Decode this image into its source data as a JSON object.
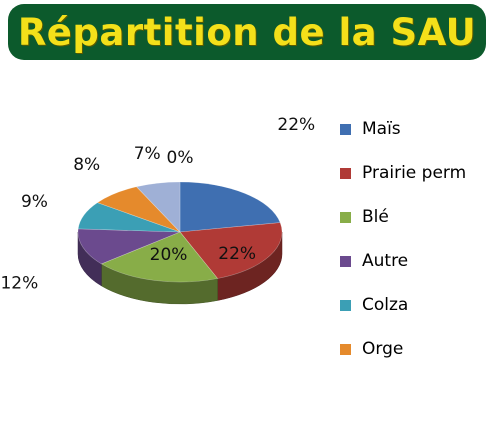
{
  "title": "Répartition de la SAU",
  "chart_data": {
    "type": "pie",
    "title": "Répartition de la SAU",
    "legend_position": "right",
    "categories": [
      "Maïs",
      "Prairie perm",
      "Blé",
      "Autre",
      "Colza",
      "Orge",
      ""
    ],
    "values": [
      22,
      22,
      20,
      12,
      9,
      8,
      7
    ],
    "labels": [
      "22%",
      "22%",
      "20%",
      "12%",
      "9%",
      "8%",
      "7%"
    ],
    "extra_labels": [
      "0%"
    ],
    "colors": [
      "#3f6fb1",
      "#b03a36",
      "#88ad48",
      "#6b4a8e",
      "#3b9fb5",
      "#e58a2c",
      "#9fb0d6"
    ],
    "legend": [
      {
        "label": "Maïs",
        "color": "#3f6fb1"
      },
      {
        "label": "Prairie perm",
        "color": "#b03a36"
      },
      {
        "label": "Blé",
        "color": "#88ad48"
      },
      {
        "label": "Autre",
        "color": "#6b4a8e"
      },
      {
        "label": "Colza",
        "color": "#3b9fb5"
      },
      {
        "label": "Orge",
        "color": "#e58a2c"
      }
    ]
  }
}
